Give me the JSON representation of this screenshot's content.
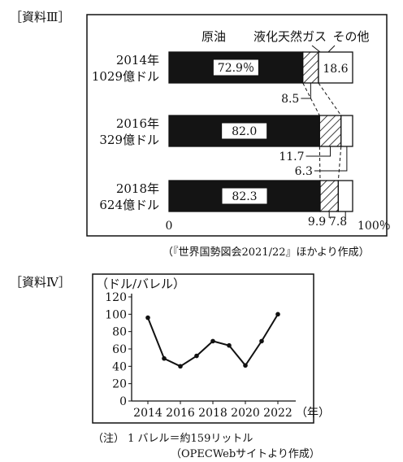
{
  "doc3": {
    "label": "［資料Ⅲ］",
    "source": "（『世界国勢図会2021/22』ほかより作成）"
  },
  "doc4": {
    "label": "［資料Ⅳ］",
    "note": "（注） 1 バレル＝約159リットル",
    "source": "（OPECWebサイトより作成）"
  },
  "chart_data": [
    {
      "type": "bar",
      "orientation": "horizontal",
      "stacked": "percent",
      "categories": [
        [
          "2014年",
          "1029億ドル"
        ],
        [
          "2016年",
          "329億ドル"
        ],
        [
          "2018年",
          "624億ドル"
        ]
      ],
      "series": [
        {
          "name": "原油",
          "values": [
            72.9,
            82.0,
            82.3
          ],
          "color": "#141414"
        },
        {
          "name": "液化天然ガス",
          "values": [
            8.5,
            11.7,
            9.9
          ],
          "pattern": "hatch"
        },
        {
          "name": "その他",
          "values": [
            18.6,
            6.3,
            7.8
          ],
          "color": "#ffffff"
        }
      ],
      "data_labels": [
        [
          "72.9％",
          "8.5",
          "18.6"
        ],
        [
          "82.0",
          "11.7",
          "6.3"
        ],
        [
          "82.3",
          "9.9",
          "7.8"
        ]
      ],
      "axis_labels": {
        "start": "0",
        "end": "100％"
      }
    },
    {
      "type": "line",
      "ylabel": "（ドル/バレル）",
      "xlabel": "（年）",
      "x": [
        2014,
        2015,
        2016,
        2017,
        2018,
        2019,
        2020,
        2021,
        2022
      ],
      "series": [
        {
          "values": [
            96,
            49,
            40,
            52,
            69,
            64,
            41,
            69,
            100
          ]
        }
      ],
      "ylim": [
        0,
        120
      ],
      "yticks": [
        0,
        20,
        40,
        60,
        80,
        100,
        120
      ],
      "xticks": [
        2014,
        2016,
        2018,
        2020,
        2022
      ],
      "grid": false
    }
  ]
}
